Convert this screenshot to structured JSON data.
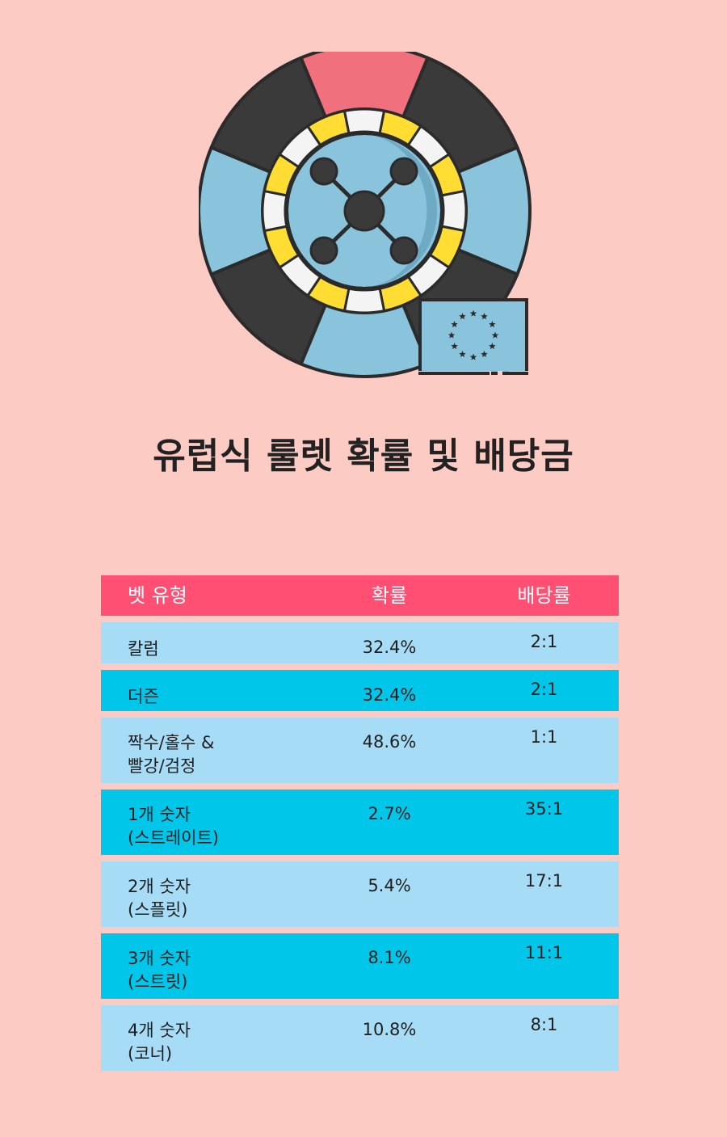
{
  "title": "유럽식 룰렛 확률 및 배당금",
  "table": {
    "headers": [
      "벳 유형",
      "확률",
      "배당률"
    ],
    "rows": [
      {
        "bet_line1": "칼럼",
        "bet_line2": "",
        "probability": "32.4%",
        "payout": "2:1"
      },
      {
        "bet_line1": "더즌",
        "bet_line2": "",
        "probability": "32.4%",
        "payout": "2:1"
      },
      {
        "bet_line1": "짝수/홀수 &",
        "bet_line2": "빨강/검정",
        "probability": "48.6%",
        "payout": "1:1"
      },
      {
        "bet_line1": "1개 숫자",
        "bet_line2": "(스트레이트)",
        "probability": "2.7%",
        "payout": "35:1"
      },
      {
        "bet_line1": "2개 숫자",
        "bet_line2": "(스플릿)",
        "probability": "5.4%",
        "payout": "17:1"
      },
      {
        "bet_line1": "3개 숫자",
        "bet_line2": "(스트릿)",
        "probability": "8.1%",
        "payout": "11:1"
      },
      {
        "bet_line1": "4개 숫자",
        "bet_line2": "(코너)",
        "probability": "10.8%",
        "payout": "8:1"
      }
    ]
  },
  "colors": {
    "background": "#fccbc3",
    "header": "#ff4f73",
    "row_light": "#a7dcf7",
    "row_dark": "#00c6ea",
    "wheel_dark": "#3a3a3a",
    "wheel_blue": "#89c4dc",
    "wheel_red": "#f0707d",
    "wheel_yellow": "#ffdd33"
  },
  "icons": [
    "roulette-wheel-icon",
    "eu-flag-icon"
  ]
}
